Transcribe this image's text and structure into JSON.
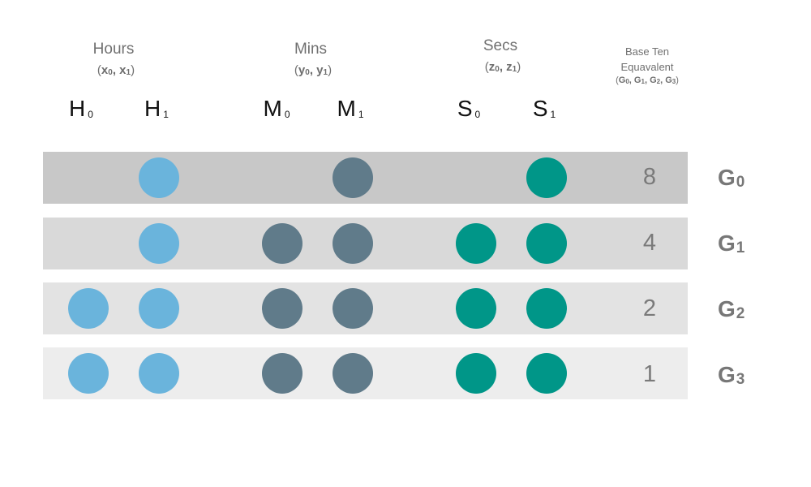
{
  "groups": [
    {
      "title": "Hours",
      "var_a": "x",
      "sub_a": "0",
      "var_b": "x",
      "sub_b": "1"
    },
    {
      "title": "Mins",
      "var_a": "y",
      "sub_a": "0",
      "var_b": "y",
      "sub_b": "1"
    },
    {
      "title": "Secs",
      "var_a": "z",
      "sub_a": "0",
      "var_b": "z",
      "sub_b": "1"
    }
  ],
  "base_ten": {
    "title_line1": "Base Ten",
    "title_line2": "Equavalent",
    "vars": [
      {
        "v": "G",
        "s": "0"
      },
      {
        "v": "G",
        "s": "1"
      },
      {
        "v": "G",
        "s": "2"
      },
      {
        "v": "G",
        "s": "3"
      }
    ]
  },
  "columns": [
    {
      "letter": "H",
      "sub": "0",
      "group": "hours"
    },
    {
      "letter": "H",
      "sub": "1",
      "group": "hours"
    },
    {
      "letter": "M",
      "sub": "0",
      "group": "mins"
    },
    {
      "letter": "M",
      "sub": "1",
      "group": "mins"
    },
    {
      "letter": "S",
      "sub": "0",
      "group": "secs"
    },
    {
      "letter": "S",
      "sub": "1",
      "group": "secs"
    }
  ],
  "colors": {
    "hours": "#6ab4dc",
    "mins": "#607b8a",
    "secs": "#009688",
    "row_bands": [
      "#c8c8c8",
      "#d9d9d9",
      "#e3e3e3",
      "#ededed"
    ]
  },
  "rows": [
    {
      "label": "G",
      "label_sub": "0",
      "value": "8",
      "bits": [
        0,
        1,
        0,
        1,
        0,
        1
      ]
    },
    {
      "label": "G",
      "label_sub": "1",
      "value": "4",
      "bits": [
        0,
        1,
        1,
        1,
        1,
        1
      ]
    },
    {
      "label": "G",
      "label_sub": "2",
      "value": "2",
      "bits": [
        1,
        1,
        1,
        1,
        1,
        1
      ]
    },
    {
      "label": "G",
      "label_sub": "3",
      "value": "1",
      "bits": [
        1,
        1,
        1,
        1,
        1,
        1
      ]
    }
  ]
}
